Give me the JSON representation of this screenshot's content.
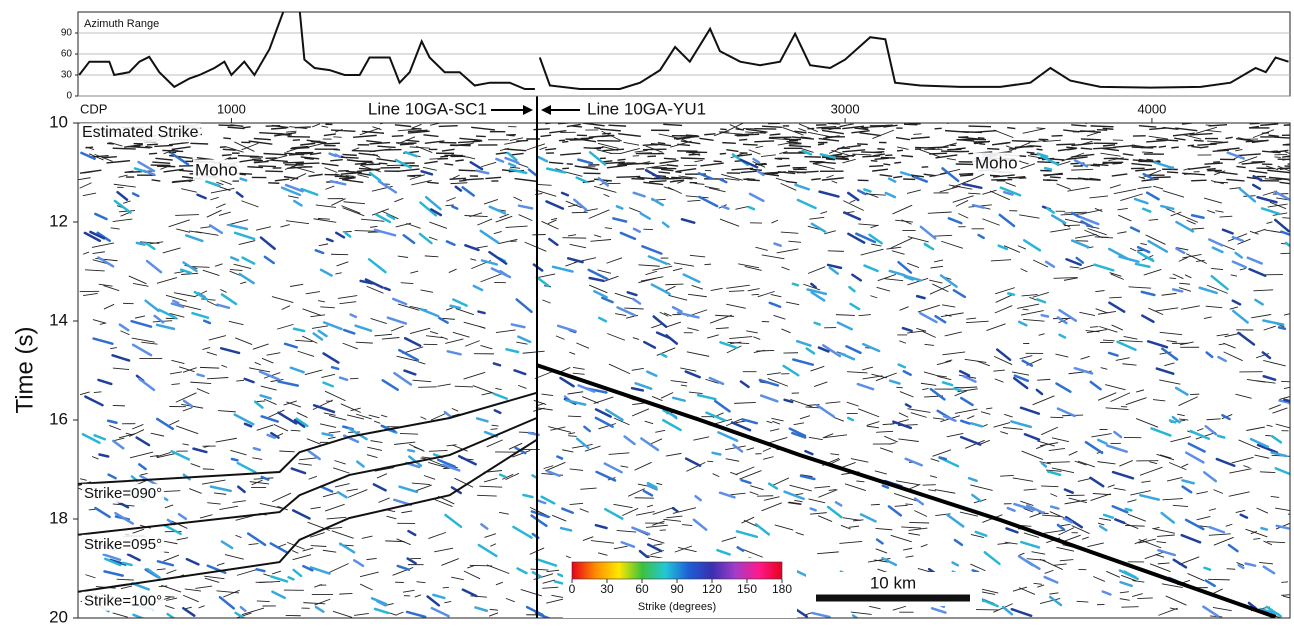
{
  "chart_data": [
    {
      "type": "line",
      "title": "Azimuth Range",
      "x": [
        504,
        537,
        602,
        618,
        667,
        700,
        732,
        765,
        814,
        863,
        896,
        945,
        977,
        1000,
        1042,
        1075,
        1124,
        1173,
        1222,
        1238,
        1271,
        1320,
        1369,
        1418,
        1450,
        1516,
        1548,
        1581,
        1620,
        1646,
        1695,
        1744,
        1793,
        1842,
        1907,
        1956,
        1989,
        1995,
        2005,
        2038,
        2136,
        2266,
        2332,
        2397,
        2446,
        2494,
        2560,
        2592,
        2658,
        2723,
        2788,
        2837,
        2886,
        2951,
        3000,
        3082,
        3131,
        3163,
        3245,
        3375,
        3506,
        3604,
        3669,
        3734,
        3832,
        3995,
        4159,
        4256,
        4338,
        4371,
        4403,
        4445
      ],
      "series": [
        {
          "color": "#111111",
          "values": [
            30,
            49,
            49,
            30,
            34,
            49,
            56,
            34,
            13,
            25,
            30,
            40,
            49,
            30,
            49,
            30,
            67,
            125,
            125,
            52,
            40,
            37,
            30,
            30,
            55,
            55,
            19,
            34,
            78,
            55,
            34,
            34,
            15,
            19,
            19,
            10,
            10,
            null,
            55,
            15,
            10,
            10,
            19,
            37,
            70,
            49,
            96,
            64,
            49,
            44,
            49,
            89,
            44,
            40,
            52,
            84,
            81,
            19,
            15,
            13,
            13,
            19,
            40,
            22,
            13,
            12,
            13,
            19,
            40,
            34,
            55,
            49
          ]
        }
      ],
      "xlim": [
        500,
        4450
      ],
      "ylim": [
        0,
        120
      ],
      "yticks": [
        0,
        30,
        60,
        90
      ],
      "grid": true
    },
    {
      "type": "section",
      "xlabel": "CDP",
      "ylabel": "Time (s)",
      "xlim": [
        500,
        4450
      ],
      "xticks": [
        1000,
        3000,
        4000
      ],
      "ylim": [
        10,
        20
      ],
      "yticks": [
        10,
        12,
        14,
        16,
        18,
        20
      ],
      "lines": [
        "Line 10GA-SC1",
        "Line 10GA-YU1"
      ],
      "annotations": [
        "Estimated Strike",
        "Moho",
        "Moho"
      ],
      "series": [
        {
          "name": "Strike=090°",
          "color": "#111111",
          "x": [
            500,
            1157,
            1222,
            1385,
            1711,
            1995
          ],
          "values": [
            17.29,
            17.05,
            16.65,
            16.34,
            15.96,
            15.45
          ]
        },
        {
          "name": "Strike=095°",
          "color": "#111111",
          "x": [
            500,
            1157,
            1222,
            1385,
            1711,
            1995
          ],
          "values": [
            18.32,
            17.86,
            17.52,
            17.11,
            16.71,
            15.96
          ]
        },
        {
          "name": "Strike=100°",
          "color": "#111111",
          "x": [
            500,
            1157,
            1222,
            1385,
            1711,
            1995
          ],
          "values": [
            19.47,
            18.87,
            18.42,
            17.98,
            17.52,
            16.4
          ]
        },
        {
          "color": "#000000",
          "x": [
            1995,
            2527,
            2853,
            3506,
            4403
          ],
          "values": [
            14.89,
            16.0,
            16.71,
            18.02,
            19.98
          ]
        }
      ],
      "colorbar": {
        "label": "Strike (degrees)",
        "lim": [
          0,
          180
        ],
        "ticks": [
          0,
          30,
          60,
          90,
          120,
          150,
          180
        ],
        "colors": [
          "#e8001c",
          "#ff8a00",
          "#ffe800",
          "#3cc23c",
          "#22c7d8",
          "#1d5fd6",
          "#3a2fb0",
          "#a33cc8",
          "#ff1a8c",
          "#e8001c"
        ]
      },
      "scale_bar": "10 km"
    }
  ]
}
